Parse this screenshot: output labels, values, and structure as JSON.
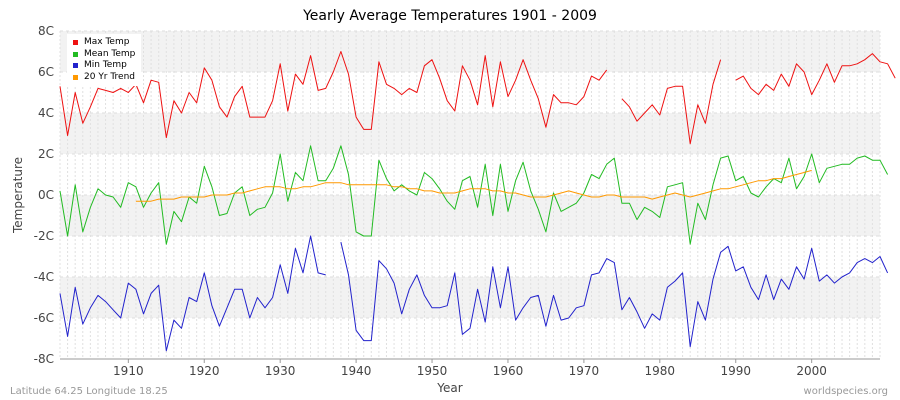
{
  "chart_data": {
    "type": "line",
    "title": "Yearly Average Temperatures 1901 - 2009",
    "xlabel": "Year",
    "ylabel": "Temperature",
    "xlim": [
      1901,
      2009
    ],
    "ylim": [
      -8,
      8
    ],
    "x_ticks": [
      1910,
      1920,
      1930,
      1940,
      1950,
      1960,
      1970,
      1980,
      1990,
      2000
    ],
    "y_ticks": [
      -8,
      -6,
      -4,
      -2,
      0,
      2,
      4,
      6,
      8
    ],
    "y_tick_labels": [
      "-8C",
      "-6C",
      "-4C",
      "-2C",
      "0C",
      "2C",
      "4C",
      "6C",
      "8C"
    ],
    "grid": true,
    "legend_position": "top-left",
    "x_start_year": 1901,
    "series": [
      {
        "name": "Max Temp",
        "color": "#ee1111",
        "values": [
          5.3,
          2.9,
          5.0,
          3.5,
          4.3,
          5.2,
          5.1,
          5.0,
          5.2,
          5.0,
          5.4,
          4.5,
          5.6,
          5.5,
          2.8,
          4.6,
          4.0,
          5.0,
          4.5,
          6.2,
          5.6,
          4.3,
          3.8,
          4.8,
          5.3,
          3.8,
          3.8,
          3.8,
          4.6,
          6.4,
          4.1,
          5.9,
          5.4,
          6.8,
          5.1,
          5.2,
          6.0,
          7.0,
          5.9,
          3.8,
          3.2,
          3.2,
          6.5,
          5.4,
          5.2,
          4.9,
          5.2,
          5.0,
          6.3,
          6.6,
          5.7,
          4.6,
          4.1,
          6.3,
          5.6,
          4.4,
          6.8,
          4.3,
          6.5,
          4.8,
          5.6,
          6.6,
          5.6,
          4.7,
          3.3,
          4.9,
          4.5,
          4.5,
          4.4,
          4.8,
          5.8,
          5.6,
          6.1,
          null,
          4.7,
          4.3,
          3.6,
          4.0,
          4.4,
          3.9,
          5.2,
          5.3,
          5.3,
          2.5,
          4.4,
          3.5,
          5.4,
          6.6,
          null,
          5.6,
          5.8,
          5.2,
          4.9,
          5.4,
          5.1,
          5.9,
          5.3,
          6.4,
          6.0,
          4.9,
          5.6,
          6.4,
          5.5,
          6.3,
          6.3,
          6.4,
          6.6,
          6.9,
          6.5,
          6.4,
          5.7
        ]
      },
      {
        "name": "Mean Temp",
        "color": "#22bb22",
        "values": [
          0.2,
          -2.0,
          0.5,
          -1.8,
          -0.6,
          0.3,
          0.0,
          -0.1,
          -0.6,
          0.6,
          0.4,
          -0.6,
          0.1,
          0.6,
          -2.4,
          -0.8,
          -1.3,
          -0.1,
          -0.4,
          1.4,
          0.4,
          -1.0,
          -0.9,
          0.1,
          0.4,
          -1.0,
          -0.7,
          -0.6,
          0.1,
          2.0,
          -0.3,
          1.1,
          0.7,
          2.4,
          0.7,
          0.7,
          1.3,
          2.4,
          1.0,
          -1.8,
          -2.0,
          -2.0,
          1.7,
          0.8,
          0.2,
          0.5,
          0.2,
          0.0,
          1.1,
          0.8,
          0.3,
          -0.3,
          -0.7,
          0.7,
          0.9,
          -0.6,
          1.5,
          -1.0,
          1.5,
          -0.8,
          0.7,
          1.6,
          0.2,
          -0.7,
          -1.8,
          0.1,
          -0.8,
          -0.6,
          -0.4,
          0.1,
          1.0,
          0.8,
          1.5,
          1.8,
          -0.4,
          -0.4,
          -1.2,
          -0.6,
          -0.8,
          -1.1,
          0.4,
          0.5,
          0.6,
          -2.4,
          -0.4,
          -1.2,
          0.5,
          1.8,
          1.9,
          0.7,
          0.9,
          0.1,
          -0.1,
          0.4,
          0.8,
          0.6,
          1.8,
          0.3,
          0.9,
          2.0,
          0.6,
          1.3,
          1.4,
          1.5,
          1.5,
          1.8,
          1.9,
          1.7,
          1.7,
          1.0
        ]
      },
      {
        "name": "Min Temp",
        "color": "#2222cc",
        "values": [
          -4.8,
          -6.9,
          -4.5,
          -6.3,
          -5.5,
          -4.9,
          -5.2,
          -5.6,
          -6.0,
          -4.3,
          -4.6,
          -5.8,
          -4.8,
          -4.4,
          -7.6,
          -6.1,
          -6.5,
          -5.0,
          -5.2,
          -3.8,
          -5.4,
          -6.4,
          -5.5,
          -4.6,
          -4.6,
          -6.0,
          -5.0,
          -5.5,
          -5.0,
          -3.4,
          -4.8,
          -2.6,
          -3.8,
          -2.0,
          -3.8,
          -3.9,
          null,
          -2.3,
          -3.9,
          -6.6,
          -7.1,
          -7.1,
          -3.2,
          -3.6,
          -4.3,
          -5.8,
          -4.6,
          -3.9,
          -4.9,
          -5.5,
          -5.5,
          -5.4,
          -3.8,
          -6.8,
          -6.5,
          -4.6,
          -6.2,
          -3.5,
          -5.5,
          -3.5,
          -6.1,
          -5.5,
          -5.0,
          -4.9,
          -6.4,
          -4.9,
          -6.1,
          -6.0,
          -5.5,
          -5.4,
          -3.9,
          -3.8,
          -3.1,
          -3.3,
          -5.6,
          -5.0,
          -5.7,
          -6.5,
          -5.8,
          -6.1,
          -4.5,
          -4.2,
          -3.8,
          -7.4,
          -5.2,
          -6.1,
          -4.1,
          -2.8,
          -2.5,
          -3.7,
          -3.5,
          -4.5,
          -5.1,
          -3.9,
          -5.1,
          -4.1,
          -4.6,
          -3.5,
          -4.1,
          -2.6,
          -4.2,
          -3.9,
          -4.3,
          -4.0,
          -3.8,
          -3.3,
          -3.1,
          -3.3,
          -3.0,
          -3.8
        ]
      },
      {
        "name": "20 Yr Trend",
        "color": "#ff9900",
        "values": [
          null,
          null,
          null,
          null,
          null,
          null,
          null,
          null,
          null,
          null,
          -0.3,
          -0.3,
          -0.3,
          -0.2,
          -0.2,
          -0.2,
          -0.1,
          -0.1,
          -0.1,
          -0.1,
          0.0,
          0.0,
          0.0,
          0.1,
          0.1,
          0.2,
          0.3,
          0.4,
          0.4,
          0.4,
          0.3,
          0.3,
          0.4,
          0.4,
          0.5,
          0.6,
          0.6,
          0.6,
          0.5,
          0.5,
          0.5,
          0.5,
          0.5,
          0.5,
          0.4,
          0.4,
          0.3,
          0.3,
          0.2,
          0.2,
          0.1,
          0.1,
          0.1,
          0.2,
          0.3,
          0.3,
          0.3,
          0.2,
          0.2,
          0.1,
          0.1,
          0.0,
          -0.1,
          -0.1,
          -0.1,
          0.0,
          0.1,
          0.2,
          0.1,
          0.0,
          -0.1,
          -0.1,
          0.0,
          0.0,
          -0.1,
          -0.1,
          -0.1,
          -0.1,
          -0.2,
          -0.1,
          0.0,
          0.1,
          0.0,
          -0.1,
          0.0,
          0.1,
          0.2,
          0.3,
          0.3,
          0.4,
          0.5,
          0.6,
          0.7,
          0.7,
          0.8,
          0.8,
          0.9,
          1.0,
          1.1,
          1.2,
          null,
          null,
          null,
          null,
          null,
          null,
          null,
          null,
          null
        ]
      }
    ]
  },
  "footer": {
    "location": "Latitude 64.25 Longitude 18.25",
    "source": "worldspecies.org"
  }
}
